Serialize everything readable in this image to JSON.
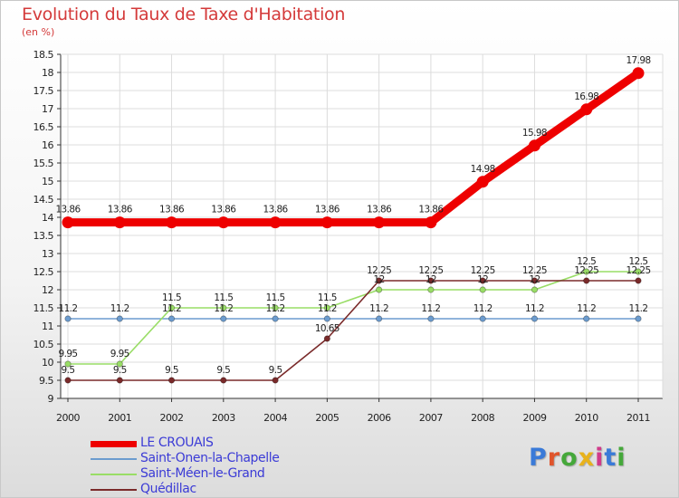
{
  "header": {
    "title": "Evolution du Taux de Taxe d'Habitation",
    "subtitle": "(en %)"
  },
  "logo": {
    "text": "Proxiti",
    "colors": [
      "#3a7ad8",
      "#e0542b",
      "#45a83a",
      "#e8b21c",
      "#d03a8a",
      "#3a7ad8",
      "#45a83a"
    ]
  },
  "chart_data": {
    "type": "line",
    "x": [
      "2000",
      "2001",
      "2002",
      "2003",
      "2004",
      "2005",
      "2006",
      "2007",
      "2008",
      "2009",
      "2010",
      "2011"
    ],
    "ylim": [
      9,
      18.5
    ],
    "yticks": [
      "9",
      "9.5",
      "10",
      "10.5",
      "11",
      "11.5",
      "12",
      "12.5",
      "13",
      "13.5",
      "14",
      "14.5",
      "15",
      "15.5",
      "16",
      "16.5",
      "17",
      "17.5",
      "18",
      "18.5"
    ],
    "grid": true,
    "legend_position": "bottom-left",
    "series": [
      {
        "name": "LE CROUAIS",
        "color": "#ee0000",
        "values": [
          13.86,
          13.86,
          13.86,
          13.86,
          13.86,
          13.86,
          13.86,
          13.86,
          14.98,
          15.98,
          16.98,
          17.98
        ],
        "labels": [
          "13.86",
          "13.86",
          "13.86",
          "13.86",
          "13.86",
          "13.86",
          "13.86",
          "13.86",
          "14.98",
          "15.98",
          "16.98",
          "17.98"
        ]
      },
      {
        "name": "Saint-Onen-la-Chapelle",
        "color": "#6c9ccf",
        "values": [
          11.2,
          11.2,
          11.2,
          11.2,
          11.2,
          11.2,
          11.2,
          11.2,
          11.2,
          11.2,
          11.2,
          11.2
        ],
        "labels": [
          "11.2",
          "11.2",
          "11.2",
          "11.2",
          "11.2",
          "11.2",
          "11.2",
          "11.2",
          "11.2",
          "11.2",
          "11.2",
          "11.2"
        ]
      },
      {
        "name": "Saint-Méen-le-Grand",
        "color": "#99dd66",
        "values": [
          9.95,
          9.95,
          11.5,
          11.5,
          11.5,
          11.5,
          12,
          12,
          12,
          12,
          12.5,
          12.5
        ],
        "labels": [
          "9.95",
          "9.95",
          "11.5",
          "11.5",
          "11.5",
          "11.5",
          "12",
          "12",
          "12",
          "12",
          "12.5",
          "12.5"
        ]
      },
      {
        "name": "Quédillac",
        "color": "#7a2a2a",
        "values": [
          9.5,
          9.5,
          9.5,
          9.5,
          9.5,
          10.65,
          12.25,
          12.25,
          12.25,
          12.25,
          12.25,
          12.25
        ],
        "labels": [
          "9.5",
          "9.5",
          "9.5",
          "9.5",
          "9.5",
          "10.65",
          "12.25",
          "12.25",
          "12.25",
          "12.25",
          "12.25",
          "12.25"
        ]
      }
    ]
  }
}
